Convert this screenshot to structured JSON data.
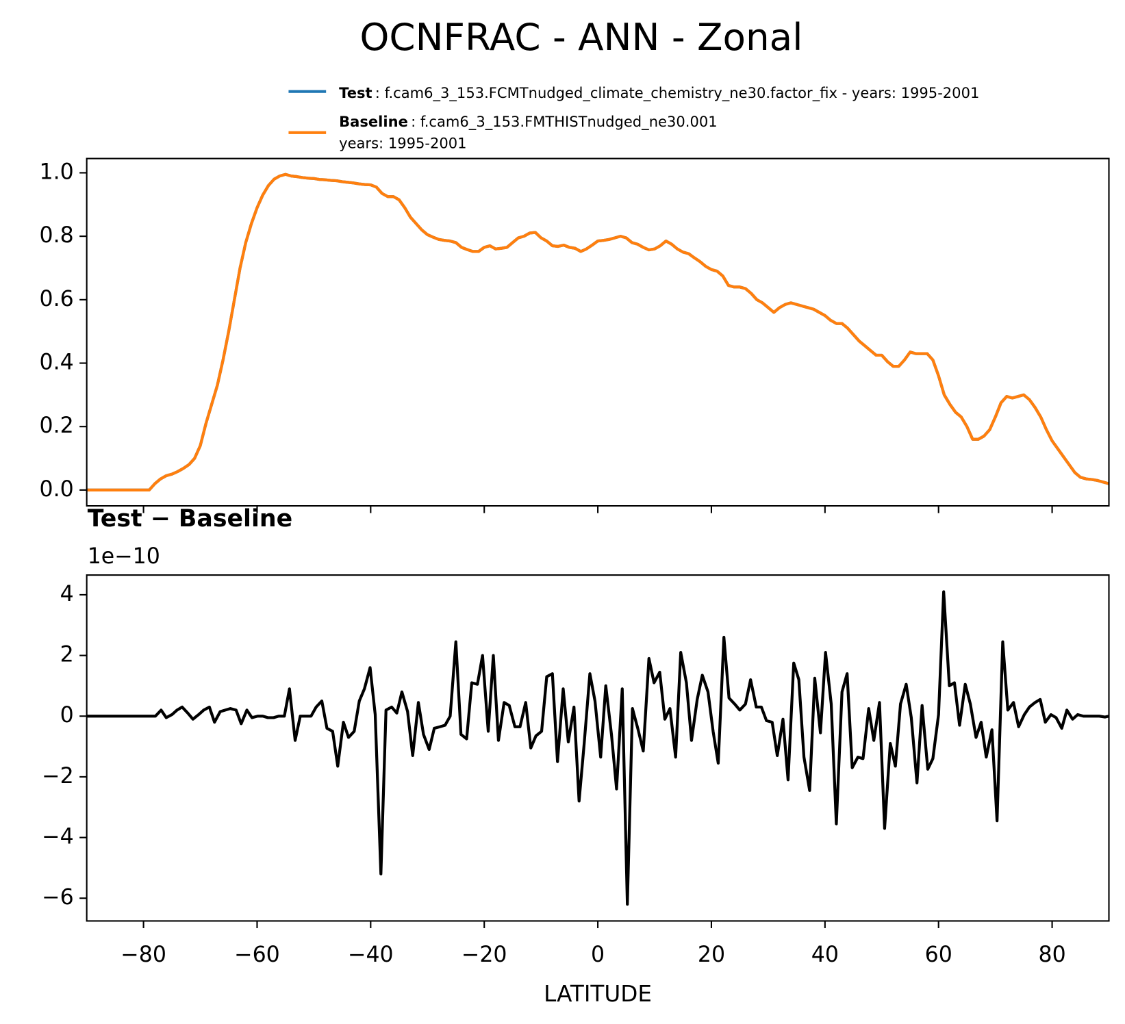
{
  "chart_data": [
    {
      "type": "line",
      "title": "OCNFRAC - ANN - Zonal",
      "x": [
        -90,
        -89,
        -88,
        -87,
        -86,
        -85,
        -84,
        -83,
        -82,
        -81,
        -80,
        -79,
        -78,
        -77,
        -76,
        -75,
        -74,
        -73,
        -72,
        -71,
        -70,
        -69,
        -68,
        -67,
        -66,
        -65,
        -64,
        -63,
        -62,
        -61,
        -60,
        -59,
        -58,
        -57,
        -56,
        -55,
        -54,
        -53,
        -52,
        -51,
        -50,
        -49,
        -48,
        -47,
        -46,
        -45,
        -44,
        -43,
        -42,
        -41,
        -40,
        -39,
        -38,
        -37,
        -36,
        -35,
        -34,
        -33,
        -32,
        -31,
        -30,
        -29,
        -28,
        -27,
        -26,
        -25,
        -24,
        -23,
        -22,
        -21,
        -20,
        -19,
        -18,
        -17,
        -16,
        -15,
        -14,
        -13,
        -12,
        -11,
        -10,
        -9,
        -8,
        -7,
        -6,
        -5,
        -4,
        -3,
        -2,
        -1,
        0,
        1,
        2,
        3,
        4,
        5,
        6,
        7,
        8,
        9,
        10,
        11,
        12,
        13,
        14,
        15,
        16,
        17,
        18,
        19,
        20,
        21,
        22,
        23,
        24,
        25,
        26,
        27,
        28,
        29,
        30,
        31,
        32,
        33,
        34,
        35,
        36,
        37,
        38,
        39,
        40,
        41,
        42,
        43,
        44,
        45,
        46,
        47,
        48,
        49,
        50,
        51,
        52,
        53,
        54,
        55,
        56,
        57,
        58,
        59,
        60,
        61,
        62,
        63,
        64,
        65,
        66,
        67,
        68,
        69,
        70,
        71,
        72,
        73,
        74,
        75,
        76,
        77,
        78,
        79,
        80,
        81,
        82,
        83,
        84,
        85,
        86,
        87,
        88,
        89,
        90
      ],
      "series": [
        {
          "name": "Test",
          "description": [
            ": f.cam6_3_153.FCMTnudged_climate_chemistry_ne30.factor_fix - years: 1995-2001"
          ],
          "color": "#1f77b4",
          "values": [
            0,
            0,
            0,
            0,
            0,
            0,
            0,
            0,
            0,
            0,
            0,
            0,
            0.02,
            0.035,
            0.045,
            0.05,
            0.058,
            0.068,
            0.08,
            0.1,
            0.14,
            0.21,
            0.27,
            0.33,
            0.41,
            0.5,
            0.6,
            0.7,
            0.78,
            0.84,
            0.89,
            0.93,
            0.96,
            0.98,
            0.99,
            0.995,
            0.99,
            0.988,
            0.985,
            0.983,
            0.982,
            0.979,
            0.978,
            0.976,
            0.975,
            0.972,
            0.97,
            0.968,
            0.965,
            0.963,
            0.962,
            0.955,
            0.935,
            0.925,
            0.925,
            0.915,
            0.89,
            0.86,
            0.84,
            0.82,
            0.805,
            0.797,
            0.79,
            0.787,
            0.785,
            0.78,
            0.765,
            0.758,
            0.752,
            0.752,
            0.765,
            0.77,
            0.76,
            0.762,
            0.765,
            0.78,
            0.795,
            0.8,
            0.81,
            0.812,
            0.795,
            0.785,
            0.77,
            0.768,
            0.772,
            0.765,
            0.762,
            0.752,
            0.76,
            0.772,
            0.785,
            0.787,
            0.79,
            0.795,
            0.8,
            0.795,
            0.78,
            0.775,
            0.765,
            0.757,
            0.76,
            0.77,
            0.785,
            0.775,
            0.76,
            0.75,
            0.745,
            0.732,
            0.72,
            0.705,
            0.695,
            0.69,
            0.675,
            0.645,
            0.64,
            0.64,
            0.635,
            0.62,
            0.6,
            0.59,
            0.575,
            0.56,
            0.575,
            0.585,
            0.59,
            0.585,
            0.58,
            0.575,
            0.57,
            0.56,
            0.55,
            0.535,
            0.525,
            0.525,
            0.51,
            0.49,
            0.47,
            0.455,
            0.44,
            0.425,
            0.425,
            0.405,
            0.39,
            0.39,
            0.41,
            0.435,
            0.43,
            0.43,
            0.43,
            0.41,
            0.36,
            0.3,
            0.27,
            0.245,
            0.23,
            0.2,
            0.16,
            0.16,
            0.17,
            0.19,
            0.23,
            0.275,
            0.295,
            0.29,
            0.295,
            0.3,
            0.285,
            0.26,
            0.23,
            0.19,
            0.155,
            0.13,
            0.105,
            0.08,
            0.055,
            0.04,
            0.035,
            0.033,
            0.03,
            0.025,
            0.02
          ]
        },
        {
          "name": "Baseline",
          "description": [
            ": f.cam6_3_153.FMTHISTnudged_ne30.001",
            "years: 1995-2001"
          ],
          "color": "#ff7f0e",
          "values": [
            0,
            0,
            0,
            0,
            0,
            0,
            0,
            0,
            0,
            0,
            0,
            0,
            0.02,
            0.035,
            0.045,
            0.05,
            0.058,
            0.068,
            0.08,
            0.1,
            0.14,
            0.21,
            0.27,
            0.33,
            0.41,
            0.5,
            0.6,
            0.7,
            0.78,
            0.84,
            0.89,
            0.93,
            0.96,
            0.98,
            0.99,
            0.995,
            0.99,
            0.988,
            0.985,
            0.983,
            0.982,
            0.979,
            0.978,
            0.976,
            0.975,
            0.972,
            0.97,
            0.968,
            0.965,
            0.963,
            0.962,
            0.955,
            0.935,
            0.925,
            0.925,
            0.915,
            0.89,
            0.86,
            0.84,
            0.82,
            0.805,
            0.797,
            0.79,
            0.787,
            0.785,
            0.78,
            0.765,
            0.758,
            0.752,
            0.752,
            0.765,
            0.77,
            0.76,
            0.762,
            0.765,
            0.78,
            0.795,
            0.8,
            0.81,
            0.812,
            0.795,
            0.785,
            0.77,
            0.768,
            0.772,
            0.765,
            0.762,
            0.752,
            0.76,
            0.772,
            0.785,
            0.787,
            0.79,
            0.795,
            0.8,
            0.795,
            0.78,
            0.775,
            0.765,
            0.757,
            0.76,
            0.77,
            0.785,
            0.775,
            0.76,
            0.75,
            0.745,
            0.732,
            0.72,
            0.705,
            0.695,
            0.69,
            0.675,
            0.645,
            0.64,
            0.64,
            0.635,
            0.62,
            0.6,
            0.59,
            0.575,
            0.56,
            0.575,
            0.585,
            0.59,
            0.585,
            0.58,
            0.575,
            0.57,
            0.56,
            0.55,
            0.535,
            0.525,
            0.525,
            0.51,
            0.49,
            0.47,
            0.455,
            0.44,
            0.425,
            0.425,
            0.405,
            0.39,
            0.39,
            0.41,
            0.435,
            0.43,
            0.43,
            0.43,
            0.41,
            0.36,
            0.3,
            0.27,
            0.245,
            0.23,
            0.2,
            0.16,
            0.16,
            0.17,
            0.19,
            0.23,
            0.275,
            0.295,
            0.29,
            0.295,
            0.3,
            0.285,
            0.26,
            0.23,
            0.19,
            0.155,
            0.13,
            0.105,
            0.08,
            0.055,
            0.04,
            0.035,
            0.033,
            0.03,
            0.025,
            0.02
          ]
        }
      ],
      "xlim": [
        -90,
        90
      ],
      "xticks": [
        {
          "value": -80,
          "label": "−80"
        },
        {
          "value": -60,
          "label": "−60"
        },
        {
          "value": -40,
          "label": "−40"
        },
        {
          "value": -20,
          "label": "−20"
        },
        0,
        20,
        40,
        60,
        80
      ],
      "ylim": [
        -0.05,
        1.045
      ],
      "yticks": [
        {
          "value": 0,
          "label": "0.0"
        },
        0.2,
        0.4,
        0.6,
        0.8,
        {
          "value": 1,
          "label": "1.0"
        }
      ]
    },
    {
      "type": "line",
      "title": "Test − Baseline",
      "offset_label": "1e−10",
      "xlabel": "LATITUDE",
      "color": "#000000",
      "x": [
        -90,
        -77.9,
        -76.9,
        -76.0,
        -75.0,
        -74.1,
        -73.2,
        -72.2,
        -71.3,
        -70.3,
        -69.4,
        -68.4,
        -67.5,
        -66.5,
        -65.6,
        -64.7,
        -63.7,
        -62.8,
        -61.8,
        -60.9,
        -59.9,
        -59.0,
        -58.1,
        -57.1,
        -56.2,
        -55.2,
        -54.3,
        -53.3,
        -52.4,
        -51.4,
        -50.5,
        -49.6,
        -48.6,
        -47.7,
        -46.7,
        -45.8,
        -44.8,
        -43.9,
        -42.9,
        -42.0,
        -41.1,
        -40.1,
        -39.2,
        -38.2,
        -37.3,
        -36.3,
        -35.4,
        -34.5,
        -33.5,
        -32.6,
        -31.6,
        -30.7,
        -29.7,
        -28.8,
        -27.8,
        -26.9,
        -26.0,
        -25.0,
        -24.1,
        -23.1,
        -22.2,
        -21.2,
        -20.3,
        -19.3,
        -18.4,
        -17.5,
        -16.5,
        -15.6,
        -14.6,
        -13.7,
        -12.7,
        -11.8,
        -10.9,
        -9.9,
        -9.0,
        -8.0,
        -7.1,
        -6.1,
        -5.2,
        -4.2,
        -3.3,
        -2.4,
        -1.4,
        -0.5,
        0.5,
        1.4,
        2.4,
        3.3,
        4.3,
        5.2,
        6.1,
        7.1,
        8.0,
        9.0,
        9.9,
        10.9,
        11.8,
        12.7,
        13.7,
        14.6,
        15.6,
        16.5,
        17.5,
        18.4,
        19.4,
        20.3,
        21.2,
        22.2,
        23.1,
        24.1,
        25.0,
        26.0,
        26.9,
        27.9,
        28.8,
        29.7,
        30.7,
        31.6,
        32.6,
        33.5,
        34.5,
        35.4,
        36.3,
        37.3,
        38.2,
        39.2,
        40.1,
        41.1,
        42.0,
        43.0,
        43.9,
        44.8,
        45.8,
        46.7,
        47.7,
        48.6,
        49.6,
        50.5,
        51.5,
        52.4,
        53.3,
        54.3,
        55.2,
        56.2,
        57.1,
        58.1,
        59.0,
        60.0,
        60.9,
        61.9,
        62.8,
        63.7,
        64.7,
        65.6,
        66.6,
        67.5,
        68.4,
        69.4,
        70.3,
        71.3,
        72.2,
        73.2,
        74.1,
        75.1,
        76.0,
        77.0,
        77.9,
        78.8,
        79.8,
        80.7,
        81.7,
        82.6,
        83.6,
        84.5,
        85.5,
        86.4,
        87.4,
        88.3,
        89.3,
        90
      ],
      "values": [
        0,
        0,
        0.2,
        -0.05,
        0.05,
        0.2,
        0.3,
        0.1,
        -0.1,
        0.05,
        0.2,
        0.3,
        -0.2,
        0.15,
        0.2,
        0.25,
        0.2,
        -0.25,
        0.2,
        -0.05,
        0,
        0,
        -0.05,
        -0.05,
        0,
        0,
        0.9,
        -0.8,
        0,
        0,
        0,
        0.3,
        0.5,
        -0.4,
        -0.5,
        -1.65,
        -0.2,
        -0.7,
        -0.5,
        0.5,
        0.9,
        1.6,
        0.05,
        -5.2,
        0.2,
        0.3,
        0.1,
        0.8,
        0.15,
        -1.3,
        0.45,
        -0.6,
        -1.1,
        -0.4,
        -0.35,
        -0.3,
        0,
        2.45,
        -0.6,
        -0.75,
        1.1,
        1.05,
        2.0,
        -0.5,
        2.0,
        -0.8,
        0.45,
        0.35,
        -0.35,
        -0.35,
        0.45,
        -1.05,
        -0.65,
        -0.5,
        1.3,
        1.4,
        -1.5,
        0.9,
        -0.85,
        0.3,
        -2.8,
        -0.9,
        1.4,
        0.5,
        -1.35,
        1.0,
        -0.6,
        -2.4,
        0.9,
        -6.2,
        0.25,
        -0.45,
        -1.15,
        1.9,
        1.1,
        1.45,
        -0.1,
        0.25,
        -1.35,
        2.1,
        1.1,
        -0.8,
        0.55,
        1.35,
        0.8,
        -0.5,
        -1.55,
        2.6,
        0.6,
        0.4,
        0.2,
        0.4,
        1.2,
        0.3,
        0.3,
        -0.15,
        -0.2,
        -1.3,
        -0.1,
        -2.1,
        1.75,
        1.2,
        -1.35,
        -2.45,
        1.25,
        -0.55,
        2.1,
        0.4,
        -3.55,
        0.8,
        1.4,
        -1.7,
        -1.35,
        -1.4,
        0.25,
        -0.8,
        0.45,
        -3.7,
        -0.9,
        -1.65,
        0.4,
        1.05,
        -0.05,
        -2.2,
        0.35,
        -1.75,
        -1.4,
        0.05,
        4.1,
        1.0,
        1.1,
        -0.3,
        1.05,
        0.4,
        -0.7,
        -0.2,
        -1.35,
        -0.45,
        -3.45,
        2.45,
        0.2,
        0.45,
        -0.35,
        0.05,
        0.3,
        0.45,
        0.55,
        -0.2,
        0.05,
        -0.05,
        -0.4,
        0.2,
        -0.1,
        0.05,
        0,
        0,
        0,
        0,
        -0.03,
        0
      ],
      "xlim": [
        -90,
        90
      ],
      "xticks": [
        {
          "value": -80,
          "label": "−80"
        },
        {
          "value": -60,
          "label": "−60"
        },
        {
          "value": -40,
          "label": "−40"
        },
        {
          "value": -20,
          "label": "−20"
        },
        0,
        20,
        40,
        60,
        80
      ],
      "ylim": [
        -6.75,
        4.65
      ],
      "yticks": [
        {
          "value": -6,
          "label": "−6"
        },
        {
          "value": -4,
          "label": "−4"
        },
        {
          "value": -2,
          "label": "−2"
        },
        0,
        2,
        4
      ]
    }
  ]
}
